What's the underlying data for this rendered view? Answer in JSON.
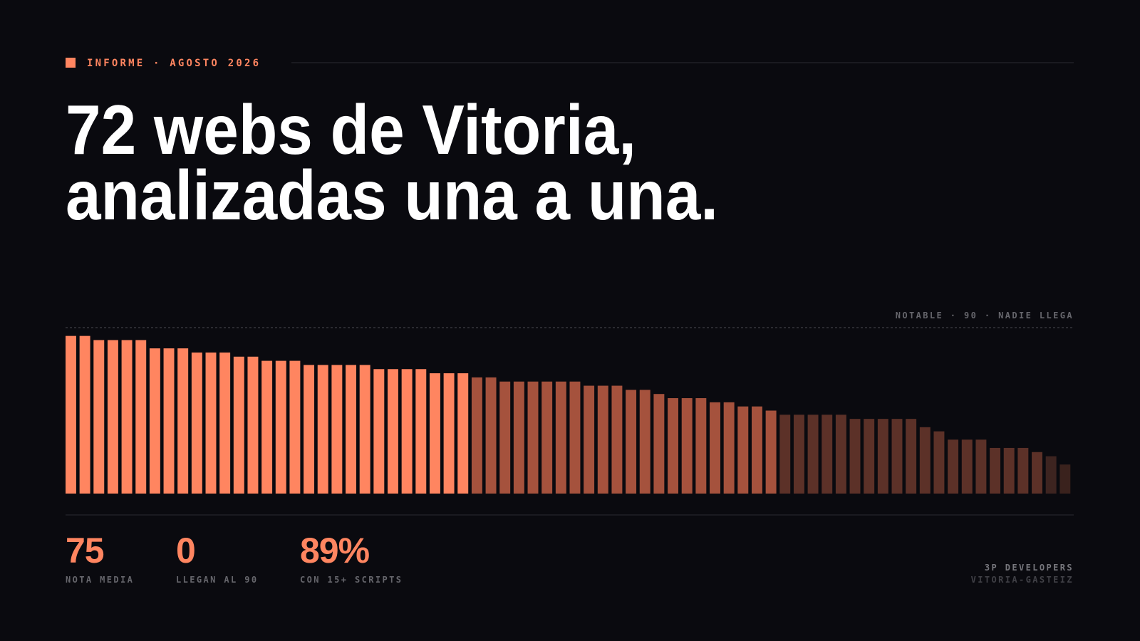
{
  "header": {
    "kicker": "INFORME · AGOSTO 2026",
    "title_lines": [
      "72 webs de Vitoria,",
      "analizadas una a una."
    ]
  },
  "chart_data": {
    "type": "bar",
    "values": [
      88,
      88,
      87,
      87,
      87,
      87,
      85,
      85,
      85,
      84,
      84,
      84,
      83,
      83,
      82,
      82,
      82,
      81,
      81,
      81,
      81,
      81,
      80,
      80,
      80,
      80,
      79,
      79,
      79,
      78,
      78,
      77,
      77,
      77,
      77,
      77,
      77,
      76,
      76,
      76,
      75,
      75,
      74,
      73,
      73,
      73,
      72,
      72,
      71,
      71,
      70,
      69,
      69,
      69,
      69,
      69,
      68,
      68,
      68,
      68,
      68,
      66,
      65,
      63,
      63,
      63,
      61,
      61,
      61,
      60,
      59,
      57
    ],
    "colors": [
      "#ff8560",
      "#ff8560",
      "#ff8560",
      "#ff8560",
      "#ff8560",
      "#ff8560",
      "#ff8560",
      "#ff8560",
      "#ff8560",
      "#ff8560",
      "#ff8560",
      "#ff8560",
      "#ff8560",
      "#ff8560",
      "#ff8560",
      "#ff8560",
      "#ff8560",
      "#ff8560",
      "#ff8560",
      "#ff8560",
      "#ff8560",
      "#ff8560",
      "#ff8560",
      "#ff8560",
      "#ff8560",
      "#ff8560",
      "#ff8560",
      "#ff8560",
      "#ff8560",
      "#a5523d",
      "#a5523d",
      "#a5523d",
      "#a5523d",
      "#a5523d",
      "#a5523d",
      "#a5523d",
      "#a5523d",
      "#a5523d",
      "#a5523d",
      "#a5523d",
      "#a5523d",
      "#a5523d",
      "#a5523d",
      "#a5523d",
      "#a5523d",
      "#a5523d",
      "#a5523d",
      "#a5523d",
      "#a5523d",
      "#a5523d",
      "#a5523d",
      "#5c3128",
      "#5c3128",
      "#5c3128",
      "#5c3128",
      "#5c3128",
      "#5c3128",
      "#5c3128",
      "#5c3128",
      "#5c3128",
      "#5c3128",
      "#5c3128",
      "#5c3128",
      "#5c3128",
      "#5c3128",
      "#5c3128",
      "#5c3128",
      "#5c3128",
      "#5c3128",
      "#5c3128",
      "#3d2420",
      "#3a221d"
    ],
    "ylim": [
      50,
      90
    ],
    "reference": {
      "value": 90,
      "label": "NOTABLE · 90 · NADIE LLEGA"
    }
  },
  "stats": [
    {
      "value": "75",
      "label": "NOTA MEDIA"
    },
    {
      "value": "0",
      "label": "LLEGAN AL 90"
    },
    {
      "value": "89%",
      "label": "CON 15+ SCRIPTS"
    }
  ],
  "footer": {
    "company": "3P DEVELOPERS",
    "city": "VITORIA-GASTEIZ"
  }
}
